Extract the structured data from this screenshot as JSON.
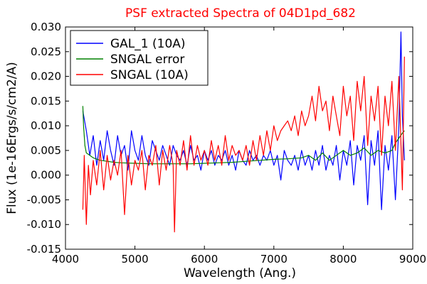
{
  "chart_data": {
    "type": "line",
    "title": "PSF extracted Spectra of 04D1pd_682",
    "xlabel": "Wavelength (Ang.)",
    "ylabel": "Flux (1e-16Ergs/s/cm2/A)",
    "xlim": [
      4000,
      9000
    ],
    "ylim": [
      -0.015,
      0.03
    ],
    "x_ticks": [
      4000,
      5000,
      6000,
      7000,
      8000,
      9000
    ],
    "x_tick_labels": [
      "4000",
      "5000",
      "6000",
      "7000",
      "8000",
      "9000"
    ],
    "y_ticks": [
      -0.015,
      -0.01,
      -0.005,
      0.0,
      0.005,
      0.01,
      0.015,
      0.02,
      0.025,
      0.03
    ],
    "y_tick_labels": [
      "-0.015",
      "-0.010",
      "-0.005",
      "0.000",
      "0.005",
      "0.010",
      "0.015",
      "0.020",
      "0.025",
      "0.030"
    ],
    "grid": false,
    "legend_position": "top-left",
    "series": [
      {
        "name": "GAL_1 (10A)",
        "color": "#0000ff",
        "x": [
          4250,
          4300,
          4350,
          4400,
          4450,
          4500,
          4550,
          4600,
          4650,
          4700,
          4750,
          4800,
          4850,
          4900,
          4950,
          5000,
          5050,
          5100,
          5150,
          5200,
          5250,
          5300,
          5350,
          5400,
          5450,
          5500,
          5550,
          5600,
          5650,
          5700,
          5750,
          5800,
          5850,
          5900,
          5950,
          6000,
          6050,
          6100,
          6150,
          6200,
          6250,
          6300,
          6350,
          6400,
          6450,
          6500,
          6550,
          6600,
          6650,
          6700,
          6750,
          6800,
          6850,
          6900,
          6950,
          7000,
          7050,
          7100,
          7150,
          7200,
          7250,
          7300,
          7350,
          7400,
          7450,
          7500,
          7550,
          7600,
          7650,
          7700,
          7750,
          7800,
          7850,
          7900,
          7950,
          8000,
          8050,
          8100,
          8150,
          8200,
          8250,
          8300,
          8350,
          8400,
          8450,
          8500,
          8550,
          8600,
          8650,
          8700,
          8750,
          8800,
          8830,
          8850,
          8880
        ],
        "y": [
          0.013,
          0.009,
          0.004,
          0.008,
          0.002,
          0.007,
          0.003,
          0.009,
          0.005,
          0.002,
          0.008,
          0.004,
          0.006,
          0.001,
          0.009,
          0.005,
          0.003,
          0.008,
          0.004,
          0.002,
          0.007,
          0.005,
          0.003,
          0.006,
          0.004,
          0.002,
          0.006,
          0.004,
          0.003,
          0.005,
          0.002,
          0.006,
          0.003,
          0.004,
          0.001,
          0.005,
          0.003,
          0.005,
          0.002,
          0.004,
          0.003,
          0.005,
          0.002,
          0.004,
          0.001,
          0.005,
          0.003,
          0.002,
          0.005,
          0.003,
          0.004,
          0.002,
          0.004,
          0.003,
          0.005,
          0.002,
          0.004,
          -0.001,
          0.005,
          0.003,
          0.002,
          0.004,
          0.001,
          0.005,
          0.002,
          0.004,
          0.001,
          0.005,
          0.002,
          0.006,
          0.001,
          0.004,
          0.002,
          0.006,
          -0.001,
          0.005,
          0.002,
          0.007,
          -0.002,
          0.006,
          0.003,
          0.008,
          -0.006,
          0.007,
          0.002,
          0.009,
          -0.007,
          0.006,
          0.001,
          0.008,
          -0.005,
          0.01,
          0.029,
          0.012,
          0.003
        ]
      },
      {
        "name": "SNGAL error",
        "color": "#008000",
        "x": [
          4250,
          4260,
          4280,
          4300,
          4350,
          4400,
          4500,
          4600,
          4700,
          4800,
          5000,
          5200,
          5400,
          5600,
          5800,
          6000,
          6200,
          6400,
          6600,
          6800,
          7000,
          7200,
          7400,
          7500,
          7600,
          7700,
          7800,
          7900,
          8000,
          8100,
          8200,
          8300,
          8400,
          8500,
          8600,
          8700,
          8750,
          8800,
          8850,
          8880
        ],
        "y": [
          0.014,
          0.01,
          0.006,
          0.0045,
          0.004,
          0.0035,
          0.003,
          0.0028,
          0.0026,
          0.0025,
          0.0024,
          0.0023,
          0.0023,
          0.0023,
          0.0023,
          0.0024,
          0.0025,
          0.0026,
          0.0028,
          0.003,
          0.0032,
          0.0033,
          0.0035,
          0.004,
          0.003,
          0.0045,
          0.003,
          0.004,
          0.005,
          0.004,
          0.0045,
          0.0055,
          0.004,
          0.005,
          0.0045,
          0.005,
          0.0065,
          0.0075,
          0.0085,
          0.009
        ]
      },
      {
        "name": "SNGAL (10A)",
        "color": "#ff0000",
        "x": [
          4250,
          4270,
          4300,
          4330,
          4360,
          4400,
          4450,
          4500,
          4550,
          4600,
          4650,
          4700,
          4750,
          4800,
          4850,
          4900,
          4950,
          5000,
          5050,
          5100,
          5150,
          5200,
          5250,
          5300,
          5350,
          5400,
          5450,
          5500,
          5550,
          5570,
          5600,
          5650,
          5700,
          5750,
          5800,
          5850,
          5900,
          5950,
          6000,
          6050,
          6100,
          6150,
          6200,
          6250,
          6300,
          6350,
          6400,
          6450,
          6500,
          6550,
          6600,
          6650,
          6700,
          6750,
          6800,
          6850,
          6900,
          6950,
          7000,
          7050,
          7100,
          7150,
          7200,
          7250,
          7300,
          7350,
          7400,
          7450,
          7500,
          7550,
          7600,
          7650,
          7700,
          7750,
          7800,
          7850,
          7900,
          7950,
          8000,
          8050,
          8100,
          8150,
          8200,
          8250,
          8300,
          8350,
          8400,
          8450,
          8500,
          8550,
          8600,
          8650,
          8700,
          8750,
          8800,
          8850,
          8880
        ],
        "y": [
          -0.007,
          0.004,
          -0.01,
          0.002,
          -0.004,
          0.003,
          -0.002,
          0.005,
          -0.003,
          0.004,
          -0.001,
          0.003,
          0.0,
          0.005,
          -0.008,
          0.004,
          -0.002,
          0.003,
          0.001,
          0.005,
          -0.003,
          0.004,
          0.002,
          0.006,
          -0.002,
          0.005,
          0.001,
          0.006,
          0.002,
          -0.0115,
          0.005,
          0.002,
          0.007,
          0.001,
          0.008,
          0.002,
          0.006,
          0.003,
          0.005,
          0.002,
          0.007,
          0.003,
          0.006,
          0.002,
          0.008,
          0.003,
          0.006,
          0.004,
          0.005,
          0.003,
          0.006,
          0.002,
          0.007,
          0.003,
          0.008,
          0.004,
          0.009,
          0.005,
          0.01,
          0.007,
          0.009,
          0.01,
          0.011,
          0.009,
          0.012,
          0.008,
          0.013,
          0.01,
          0.012,
          0.016,
          0.011,
          0.018,
          0.013,
          0.015,
          0.009,
          0.016,
          0.012,
          0.008,
          0.018,
          0.012,
          0.016,
          0.007,
          0.019,
          0.013,
          0.02,
          0.006,
          0.016,
          0.011,
          0.018,
          0.004,
          0.016,
          0.01,
          0.019,
          0.005,
          0.02,
          -0.003,
          0.024
        ]
      }
    ]
  }
}
